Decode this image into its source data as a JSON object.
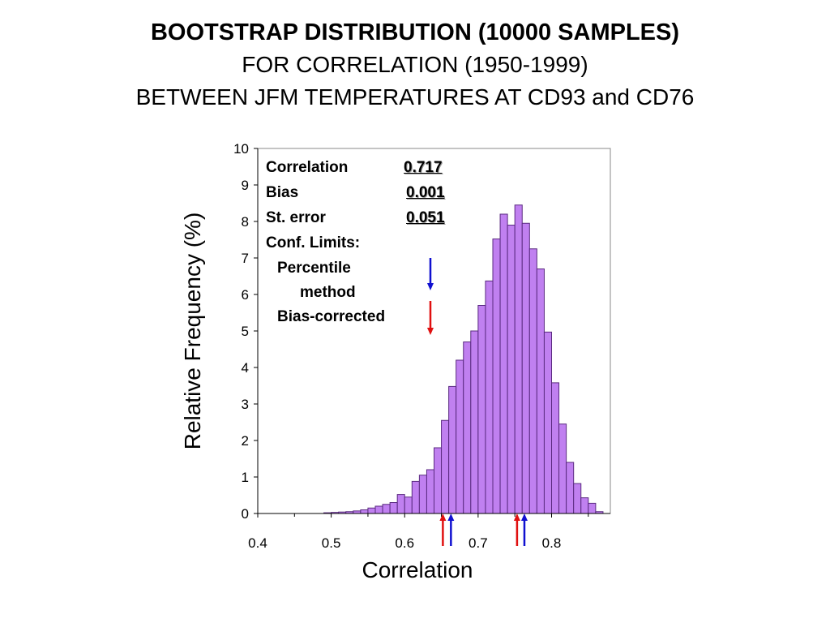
{
  "title": {
    "line1": "BOOTSTRAP DISTRIBUTION (10000  SAMPLES)",
    "line2": "FOR CORRELATION (1950-1999)",
    "line3": "BETWEEN JFM TEMPERATURES AT CD93 and CD76"
  },
  "stats": {
    "correlation_label": "Correlation",
    "correlation_value": "0.717",
    "bias_label": "Bias",
    "bias_value": "0.001",
    "st_error_label": "St. error",
    "st_error_value": "0.051",
    "conf_limits_label": "Conf. Limits:",
    "percentile_label_1": "Percentile",
    "percentile_label_2": "method",
    "bias_corrected_label": "Bias-corrected"
  },
  "colors": {
    "bar_fill": "#c080f0",
    "bar_stroke": "#5a2a80",
    "percentile_arrow": "#1010d0",
    "bias_corrected_arrow": "#e01010"
  },
  "chart_data": {
    "type": "bar",
    "xlabel": "Correlation",
    "ylabel": "Relative Frequency (%)",
    "xlim": [
      0.4,
      0.88
    ],
    "ylim": [
      0,
      10
    ],
    "x_ticks": [
      "0.4",
      "0.5",
      "0.6",
      "0.7",
      "0.8"
    ],
    "y_ticks": [
      "0",
      "1",
      "2",
      "3",
      "4",
      "5",
      "6",
      "7",
      "8",
      "9",
      "10"
    ],
    "grid": false,
    "bin_width": 0.01,
    "bin_starts": [
      0.49,
      0.5,
      0.51,
      0.52,
      0.53,
      0.54,
      0.55,
      0.56,
      0.57,
      0.58,
      0.59,
      0.6,
      0.61,
      0.62,
      0.63,
      0.64,
      0.65,
      0.66,
      0.67,
      0.68,
      0.69,
      0.7,
      0.71,
      0.72,
      0.73,
      0.74,
      0.75,
      0.76,
      0.77,
      0.78,
      0.79,
      0.8,
      0.81,
      0.82,
      0.83,
      0.84,
      0.85,
      0.86
    ],
    "values": [
      0.02,
      0.03,
      0.04,
      0.05,
      0.07,
      0.1,
      0.15,
      0.2,
      0.25,
      0.3,
      0.52,
      0.45,
      0.88,
      1.05,
      1.2,
      1.8,
      2.55,
      3.48,
      4.2,
      4.7,
      5.0,
      5.7,
      6.37,
      7.52,
      8.2,
      7.9,
      8.45,
      7.95,
      7.25,
      6.7,
      4.97,
      3.58,
      2.45,
      1.4,
      0.82,
      0.43,
      0.28,
      0.05
    ],
    "confidence_limits": {
      "percentile": [
        0.663,
        0.763
      ],
      "bias_corrected": [
        0.652,
        0.753
      ]
    }
  }
}
